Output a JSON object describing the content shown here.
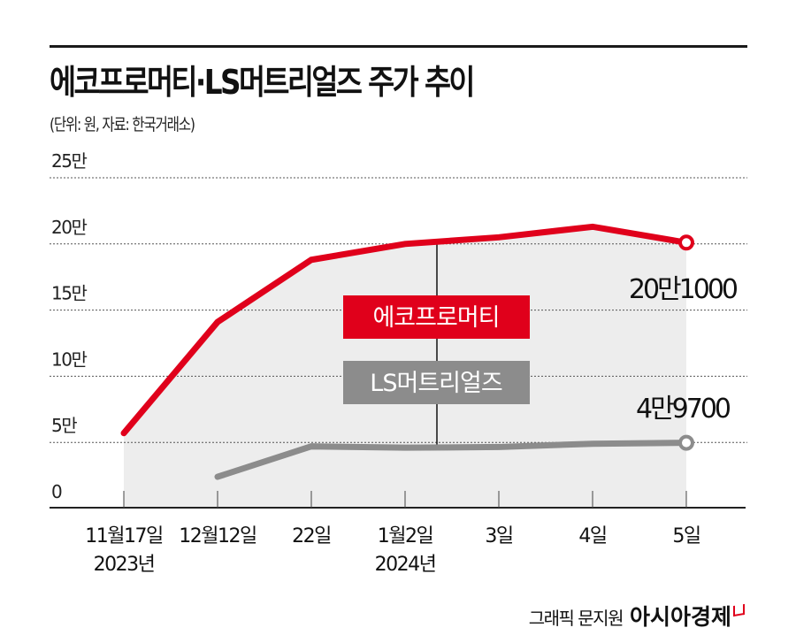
{
  "header": {
    "title": "에코프로머티·LS머트리얼즈 주가 추이",
    "subtitle": "(단위: 원, 자료: 한국거래소)"
  },
  "footer": {
    "credit": "그래픽 문지원",
    "brand": "아시아경제"
  },
  "colors": {
    "ecopro": "#e0001b",
    "ls": "#8c8c8c",
    "area": "#ededed",
    "grid": "#555555"
  },
  "chart_data": {
    "type": "line",
    "title": "에코프로머티·LS머트리얼즈 주가 추이",
    "subtitle": "(단위: 원, 자료: 한국거래소)",
    "xlabel": "",
    "ylabel": "원",
    "unit": "원",
    "categories": [
      "11월17일\n2023년",
      "12월12일",
      "22일",
      "1월2일\n2024년",
      "3일",
      "4일",
      "5일"
    ],
    "x_labels": [
      {
        "line1": "11월17일",
        "line2": "2023년"
      },
      {
        "line1": "12월12일",
        "line2": ""
      },
      {
        "line1": "22일",
        "line2": ""
      },
      {
        "line1": "1월2일",
        "line2": "2024년"
      },
      {
        "line1": "3일",
        "line2": ""
      },
      {
        "line1": "4일",
        "line2": ""
      },
      {
        "line1": "5일",
        "line2": ""
      }
    ],
    "y_ticks": [
      0,
      50000,
      100000,
      150000,
      200000,
      250000
    ],
    "y_tick_labels": [
      "0",
      "5만",
      "10만",
      "15만",
      "20만",
      "25만"
    ],
    "ylim": [
      0,
      250000
    ],
    "grid": true,
    "legend_position": "inline labels center",
    "series": [
      {
        "name": "에코프로머티",
        "color": "#e0001b",
        "values": [
          57000,
          141000,
          188000,
          200000,
          205000,
          213000,
          201000
        ],
        "end_label": "20만1000"
      },
      {
        "name": "LS머트리얼즈",
        "color": "#8c8c8c",
        "values": [
          null,
          24000,
          47000,
          46000,
          46500,
          49000,
          49700
        ],
        "end_label": "4만9700"
      }
    ]
  }
}
